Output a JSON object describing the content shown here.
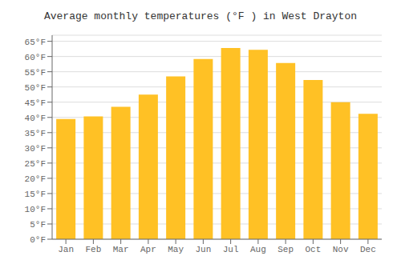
{
  "chart_data": {
    "type": "bar",
    "title": "Average monthly temperatures (°F ) in West Drayton",
    "categories": [
      "Jan",
      "Feb",
      "Mar",
      "Apr",
      "May",
      "Jun",
      "Jul",
      "Aug",
      "Sep",
      "Oct",
      "Nov",
      "Dec"
    ],
    "values": [
      39.5,
      40.3,
      43.5,
      47.5,
      53.5,
      59.2,
      62.8,
      62.2,
      57.9,
      52.3,
      45.0,
      41.2
    ],
    "color": "#FFC125",
    "ylim": [
      0,
      67
    ],
    "yticks": [
      {
        "value": 0,
        "label": "0°F"
      },
      {
        "value": 5,
        "label": "5°F"
      },
      {
        "value": 10,
        "label": "10°F"
      },
      {
        "value": 15,
        "label": "15°F"
      },
      {
        "value": 20,
        "label": "20°F"
      },
      {
        "value": 25,
        "label": "25°F"
      },
      {
        "value": 30,
        "label": "30°F"
      },
      {
        "value": 35,
        "label": "35°F"
      },
      {
        "value": 40,
        "label": "40°F"
      },
      {
        "value": 45,
        "label": "45°F"
      },
      {
        "value": 50,
        "label": "50°F"
      },
      {
        "value": 55,
        "label": "55°F"
      },
      {
        "value": 60,
        "label": "60°F"
      },
      {
        "value": 65,
        "label": "65°F"
      }
    ],
    "grid": true
  }
}
